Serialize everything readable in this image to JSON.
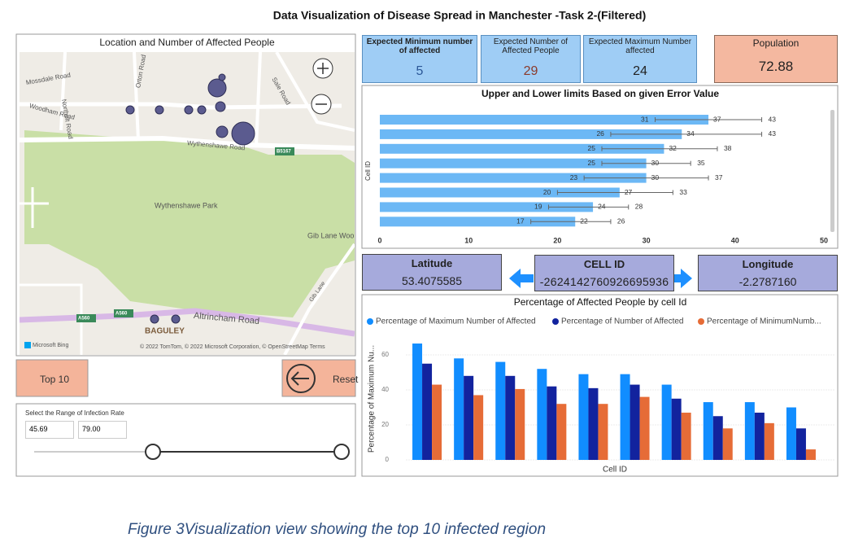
{
  "title": "Data Visualization of Disease Spread in Manchester -Task 2-(Filtered)",
  "map": {
    "title": "Location and Number of Affected People",
    "labels": [
      "Mossdale Road",
      "Woodham Road",
      "Northolt Road",
      "Orton Road",
      "Wythenshawe Road",
      "B5167",
      "Wythenshawe Park",
      "Gib Lane Woo",
      "Gib Lane",
      "Altrincham Road",
      "A560",
      "A560",
      "BAGULEY",
      "Sale Road"
    ],
    "brand": "Microsoft Bing",
    "attribution": "© 2022 TomTom, © 2022 Microsoft Corporation, © OpenStreetMap  Terms"
  },
  "buttons": {
    "top10": "Top 10",
    "reset": "Reset"
  },
  "slicer": {
    "title": "Select the Range of Infection Rate",
    "min": "45.69",
    "max": "79.00"
  },
  "cards": [
    {
      "label": "Expected Minimum number of affected",
      "value": 5
    },
    {
      "label": "Expected Number of Affected People",
      "value": 29
    },
    {
      "label": "Expected Maximum Number affected",
      "value": 24
    },
    {
      "label": "Population",
      "value": 72.88
    }
  ],
  "error_chart": {
    "type": "bar",
    "orientation": "horizontal",
    "title": "Upper and Lower limits Based on given Error Value",
    "y_label": "Cell ID",
    "categories": [
      null,
      null,
      null,
      null,
      null,
      null,
      null,
      null
    ],
    "values": [
      37,
      34,
      32,
      30,
      30,
      27,
      24,
      22
    ],
    "lower": [
      31,
      26,
      25,
      25,
      23,
      20,
      19,
      17
    ],
    "upper": [
      43,
      43,
      38,
      35,
      37,
      33,
      28,
      26
    ],
    "color": "#6cb8f5",
    "xlim": [
      0,
      50
    ],
    "xticks": [
      0,
      10,
      20,
      30,
      40,
      50
    ]
  },
  "location_cards": [
    {
      "label": "Latitude",
      "value": "53.4075585"
    },
    {
      "label": "CELL ID",
      "value": "-2624142760926695936"
    },
    {
      "label": "Longitude",
      "value": "-2.2787160"
    }
  ],
  "bar_chart": {
    "type": "bar",
    "title": "Percentage of Affected People by cell Id",
    "x_label": "Cell ID",
    "y_label": "Percentage of Maximum Nu...",
    "categories": [
      null,
      null,
      null,
      null,
      null,
      null,
      null,
      null,
      null,
      null
    ],
    "series": [
      {
        "name": "Percentage of Maximum Number of Affected",
        "color": "#118dff",
        "values": [
          66.5,
          58,
          56,
          52,
          49,
          49,
          43,
          33,
          33,
          30
        ]
      },
      {
        "name": "Percentage of Number of Affected",
        "color": "#12239e",
        "values": [
          55,
          48,
          48,
          42,
          41,
          43,
          35,
          25,
          27,
          18
        ]
      },
      {
        "name": "Percentage of MinimumNumb...",
        "color": "#e66c37",
        "values": [
          43,
          37,
          40.5,
          32,
          32,
          36,
          27,
          18,
          21,
          6
        ]
      }
    ],
    "ylim": [
      0,
      70
    ],
    "yticks": [
      0,
      20,
      40,
      60
    ],
    "grid": true
  },
  "caption": "Figure 3Visualization view showing the top 10 infected region"
}
